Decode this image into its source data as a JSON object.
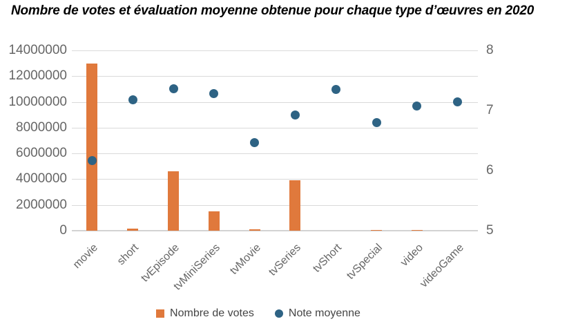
{
  "colors": {
    "bar": "#E0793C",
    "dot": "#2E6384",
    "gridline": "#D9D9D9",
    "baseline": "#D2D2D2",
    "axis_text": "#666666",
    "legend_text": "#444444",
    "title_text": "#000000"
  },
  "chart_data": {
    "type": "combo-bar-scatter",
    "title": "Nombre de votes et évaluation moyenne obtenue pour chaque type d’œuvres en 2020",
    "categories": [
      "movie",
      "short",
      "tvEpisode",
      "tvMiniSeries",
      "tvMovie",
      "tvSeries",
      "tvShort",
      "tvSpecial",
      "video",
      "videoGame"
    ],
    "series": [
      {
        "name": "Nombre de votes",
        "type": "bar",
        "axis": "left",
        "values": [
          13000000,
          150000,
          4600000,
          1500000,
          120000,
          3900000,
          0,
          80000,
          80000,
          0
        ]
      },
      {
        "name": "Note moyenne",
        "type": "scatter",
        "axis": "right",
        "values": [
          6.17,
          7.18,
          7.36,
          7.28,
          6.46,
          6.92,
          7.35,
          6.8,
          7.08,
          7.14
        ]
      }
    ],
    "left_axis": {
      "min": 0,
      "max": 14000000,
      "step": 2000000,
      "tick_labels": [
        "0",
        "2000000",
        "4000000",
        "6000000",
        "8000000",
        "10000000",
        "12000000",
        "14000000"
      ]
    },
    "right_axis": {
      "min": 5,
      "max": 8,
      "step": 1,
      "tick_labels": [
        "5",
        "6",
        "7",
        "8"
      ]
    },
    "grid": true,
    "legend_position": "bottom"
  }
}
